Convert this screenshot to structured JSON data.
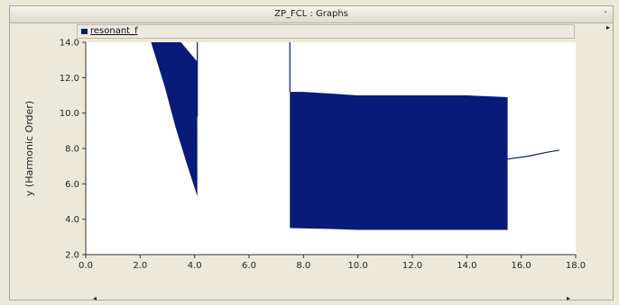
{
  "window": {
    "title": "ZP_FCL : Graphs",
    "minimize_glyph": "-"
  },
  "scroll": {
    "up_glyph": "▸",
    "left_glyph": "◂",
    "right_glyph": "▸"
  },
  "chart_data": {
    "type": "line",
    "title": "",
    "xlabel": "",
    "ylabel": "y (Harmonic Order)",
    "xlim": [
      0,
      18
    ],
    "ylim": [
      2,
      14
    ],
    "x_ticks": [
      "0.0",
      "2.0",
      "4.0",
      "6.0",
      "8.0",
      "10.0",
      "12.0",
      "14.0",
      "16.0",
      "18.0"
    ],
    "y_ticks": [
      "2.0",
      "4.0",
      "6.0",
      "8.0",
      "10.0",
      "12.0",
      "14.0"
    ],
    "grid": false,
    "legend": {
      "position": "top-left",
      "entries": [
        "resonant_f"
      ]
    },
    "series": [
      {
        "name": "resonant_f",
        "color": "#0a1a78",
        "segments": [
          {
            "kind": "band",
            "points_top": [
              [
                2.4,
                14.0
              ],
              [
                2.6,
                14.0
              ],
              [
                3.0,
                14.0
              ],
              [
                3.5,
                14.0
              ],
              [
                4.1,
                12.9
              ]
            ],
            "points_bottom": [
              [
                2.4,
                14.0
              ],
              [
                2.9,
                11.5
              ],
              [
                3.3,
                9.2
              ],
              [
                3.7,
                7.2
              ],
              [
                4.1,
                5.3
              ]
            ]
          },
          {
            "kind": "line",
            "points": [
              [
                4.1,
                14.0
              ],
              [
                4.1,
                9.8
              ]
            ]
          },
          {
            "kind": "band",
            "points_top": [
              [
                7.5,
                11.2
              ],
              [
                8.0,
                11.2
              ],
              [
                9.0,
                11.1
              ],
              [
                10.0,
                11.0
              ],
              [
                12.0,
                11.0
              ],
              [
                14.0,
                11.0
              ],
              [
                15.5,
                10.9
              ]
            ],
            "points_bottom": [
              [
                7.5,
                3.5
              ],
              [
                9.0,
                3.45
              ],
              [
                10.0,
                3.4
              ],
              [
                12.0,
                3.4
              ],
              [
                14.0,
                3.4
              ],
              [
                15.5,
                3.4
              ]
            ]
          },
          {
            "kind": "line",
            "points": [
              [
                7.5,
                14.0
              ],
              [
                7.5,
                11.2
              ]
            ]
          },
          {
            "kind": "line",
            "points": [
              [
                15.5,
                7.4
              ],
              [
                16.2,
                7.55
              ],
              [
                17.0,
                7.8
              ],
              [
                17.4,
                7.9
              ]
            ]
          }
        ]
      }
    ]
  }
}
